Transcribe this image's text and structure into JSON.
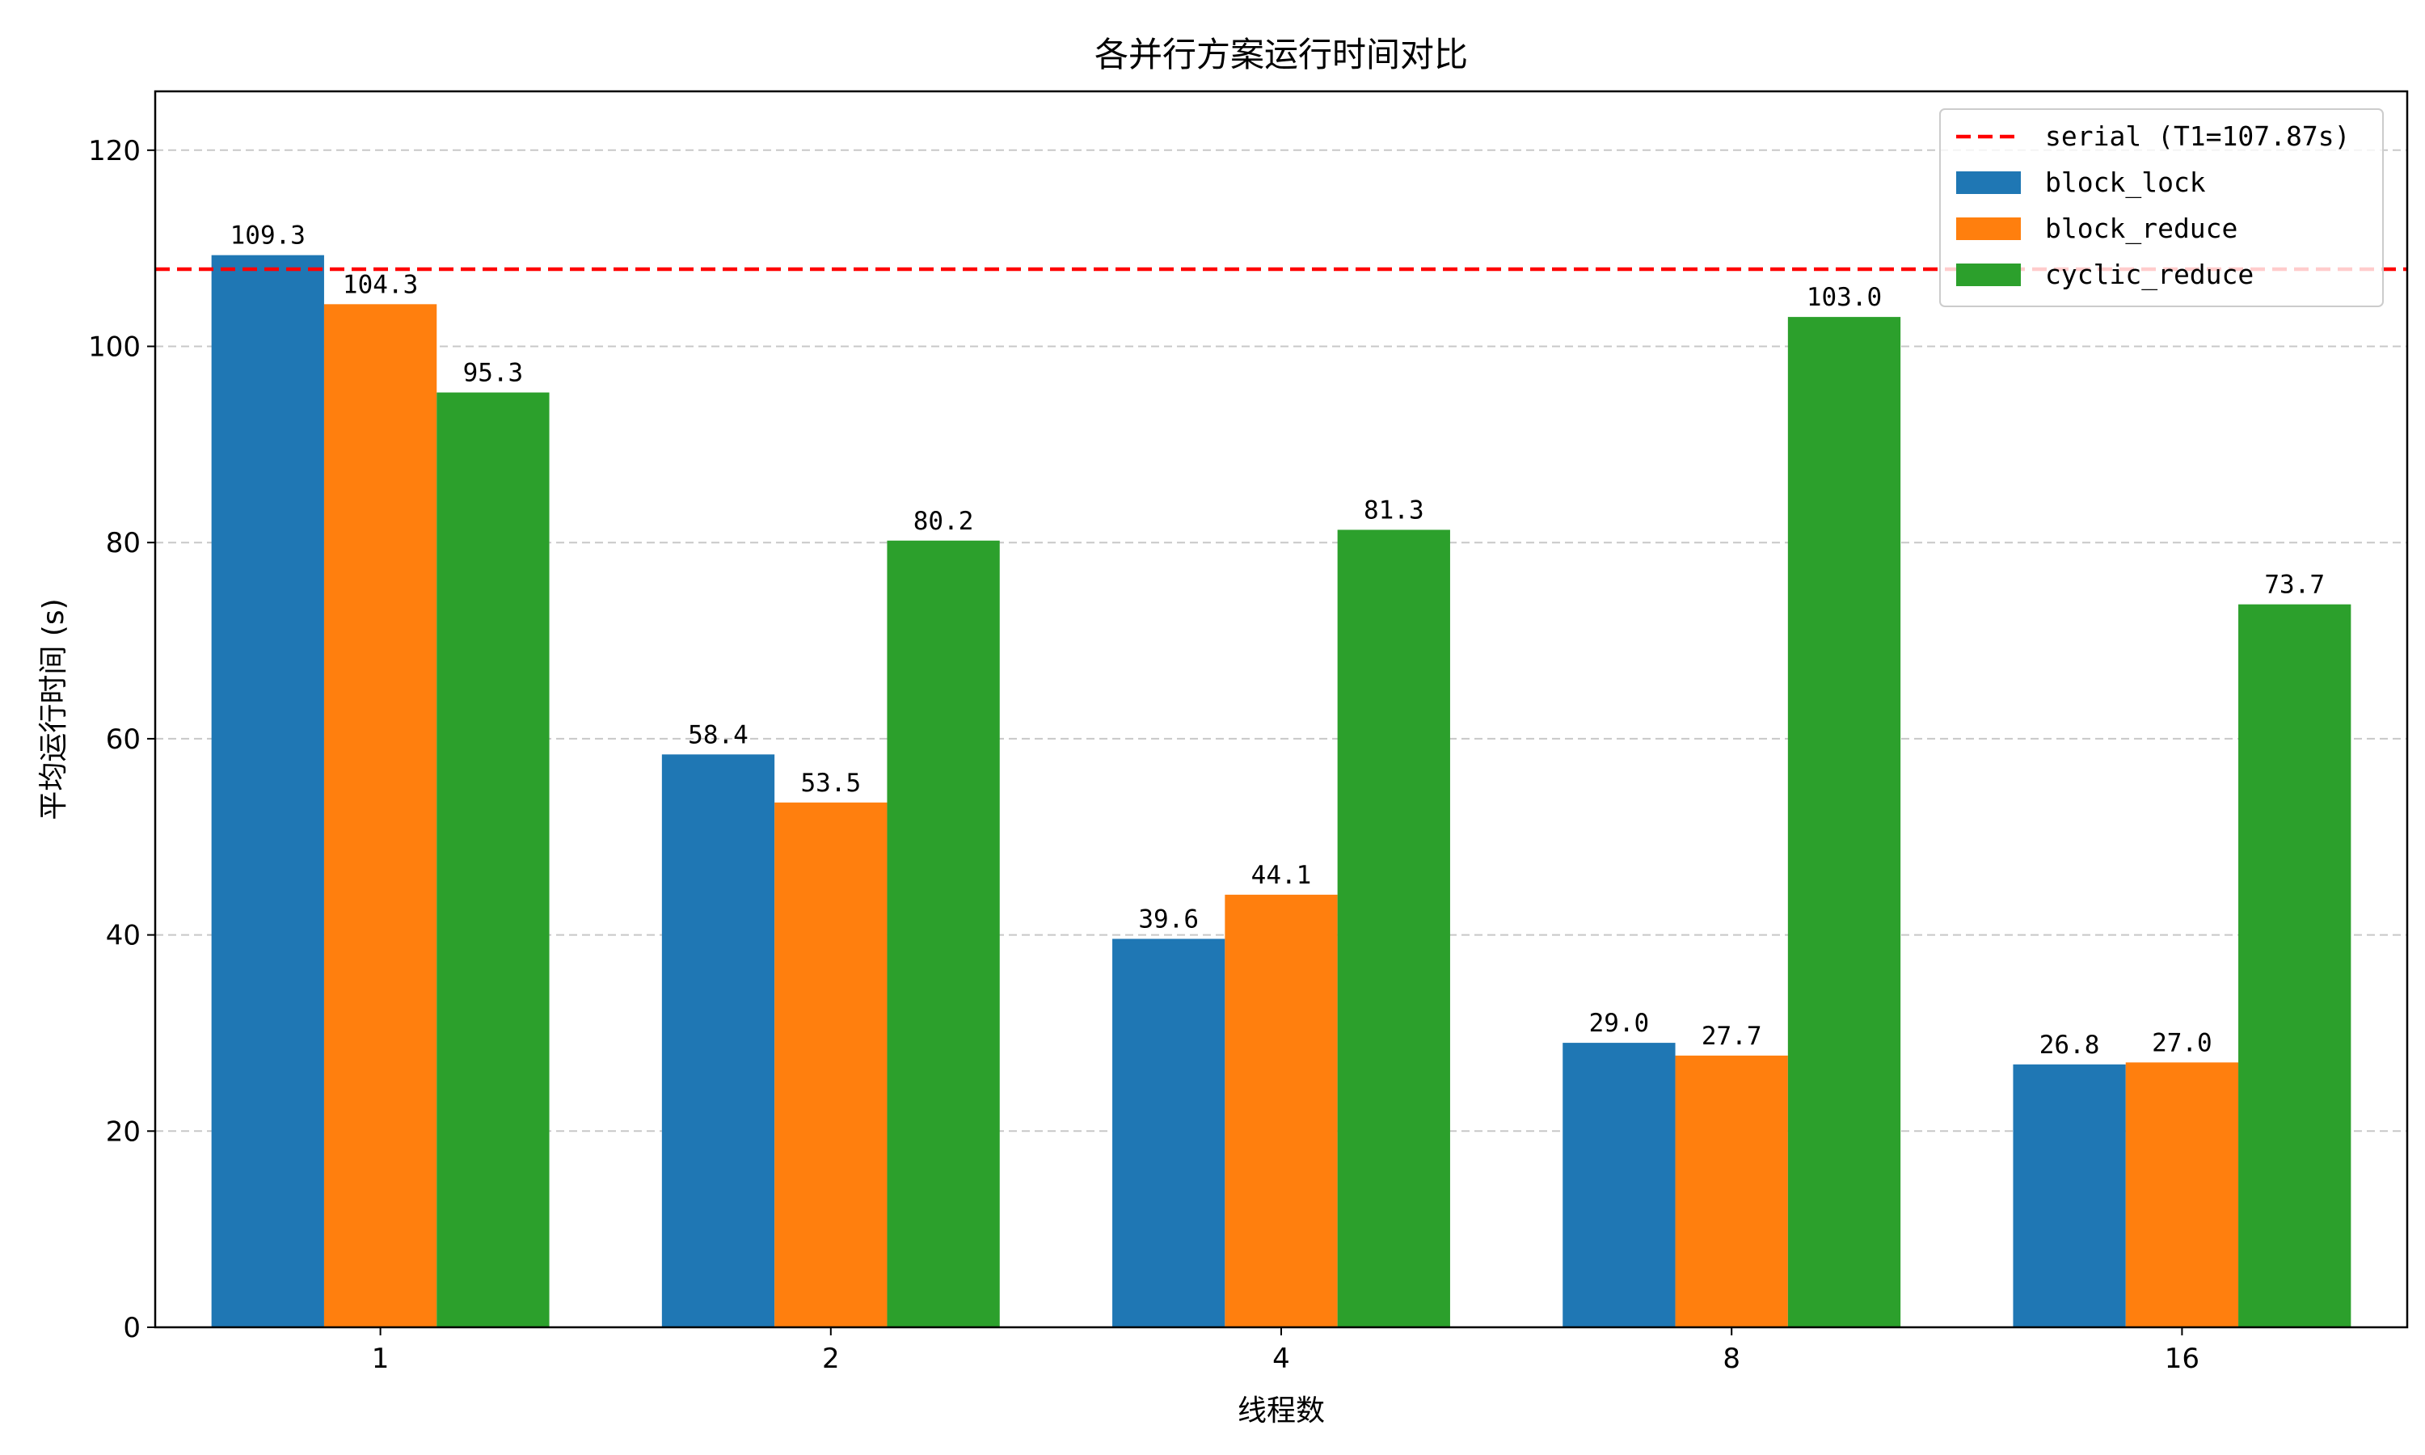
{
  "chart_data": {
    "type": "bar",
    "title": "各并行方案运行时间对比",
    "xlabel": "线程数",
    "ylabel": "平均运行时间 (s)",
    "categories": [
      "1",
      "2",
      "4",
      "8",
      "16"
    ],
    "ylim": [
      0,
      126
    ],
    "yticks": [
      0,
      20,
      40,
      60,
      80,
      100,
      120
    ],
    "grid": "y dashed",
    "legend_position": "top-right",
    "series": [
      {
        "name": "block_lock",
        "color": "#1f77b4",
        "values": [
          109.3,
          58.4,
          39.6,
          29.0,
          26.8
        ],
        "labels": [
          "109.3",
          "58.4",
          "39.6",
          "29.0",
          "26.8"
        ]
      },
      {
        "name": "block_reduce",
        "color": "#ff7f0e",
        "values": [
          104.3,
          53.5,
          44.1,
          27.7,
          27.0
        ],
        "labels": [
          "104.3",
          "53.5",
          "44.1",
          "27.7",
          "27.0"
        ]
      },
      {
        "name": "cyclic_reduce",
        "color": "#2ca02c",
        "values": [
          95.3,
          80.2,
          81.3,
          103.0,
          73.7
        ],
        "labels": [
          "95.3",
          "80.2",
          "81.3",
          "103.0",
          "73.7"
        ]
      }
    ],
    "reference_line": {
      "name": "serial (T1=107.87s)",
      "value": 107.87,
      "color": "#ff0000",
      "style": "dashed"
    }
  }
}
